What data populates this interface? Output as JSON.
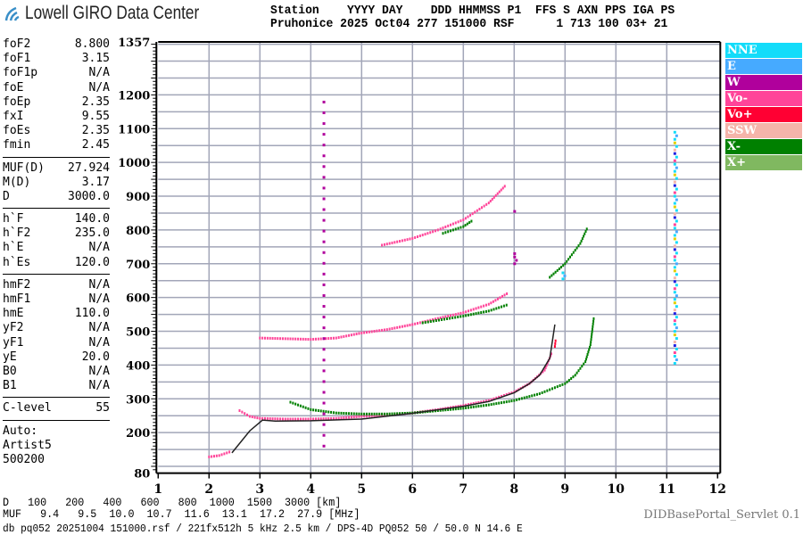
{
  "logo": {
    "text": "Lowell GIRO Data Center"
  },
  "header": {
    "line1": "Station    YYYY DAY    DDD HHMMSS P1  FFS S AXN PPS IGA PS",
    "line2": "Pruhonice 2025 Oct04 277 151000 RSF      1 713 100 03+ 21"
  },
  "params": {
    "group1": [
      {
        "label": "foF2",
        "value": "8.800"
      },
      {
        "label": "foF1",
        "value": "3.15"
      },
      {
        "label": "foF1p",
        "value": "N/A"
      },
      {
        "label": "foE",
        "value": "N/A"
      },
      {
        "label": "foEp",
        "value": "2.35"
      },
      {
        "label": "fxI",
        "value": "9.55"
      },
      {
        "label": "foEs",
        "value": "2.35"
      },
      {
        "label": "fmin",
        "value": "2.45"
      }
    ],
    "group2": [
      {
        "label": "MUF(D)",
        "value": "27.924"
      },
      {
        "label": "M(D)",
        "value": "3.17"
      },
      {
        "label": "D",
        "value": "3000.0"
      }
    ],
    "group3": [
      {
        "label": "h`F",
        "value": "140.0"
      },
      {
        "label": "h`F2",
        "value": "235.0"
      },
      {
        "label": "h`E",
        "value": "N/A"
      },
      {
        "label": "h`Es",
        "value": "120.0"
      }
    ],
    "group4": [
      {
        "label": "hmF2",
        "value": "N/A"
      },
      {
        "label": "hmF1",
        "value": "N/A"
      },
      {
        "label": "hmE",
        "value": "110.0"
      },
      {
        "label": "yF2",
        "value": "N/A"
      },
      {
        "label": "yF1",
        "value": "N/A"
      },
      {
        "label": "yE",
        "value": "20.0"
      },
      {
        "label": "B0",
        "value": "N/A"
      },
      {
        "label": "B1",
        "value": "N/A"
      }
    ],
    "group5": [
      {
        "label": "C-level",
        "value": "55"
      }
    ],
    "auto": [
      "Auto:",
      "Artist5",
      "500200"
    ]
  },
  "legend": [
    {
      "name": "NNE",
      "color": "#13dcfa"
    },
    {
      "name": "E",
      "color": "#46aaff"
    },
    {
      "name": "W",
      "color": "#b0009c"
    },
    {
      "name": "Vo-",
      "color": "#ff4499"
    },
    {
      "name": "Vo+",
      "color": "#ff0033"
    },
    {
      "name": "SSW",
      "color": "#f5b4aa"
    },
    {
      "name": "X-",
      "color": "#008000"
    },
    {
      "name": "X+",
      "color": "#80b860"
    }
  ],
  "chart_data": {
    "type": "scatter",
    "xlim": [
      1,
      12
    ],
    "ylim": [
      80,
      1357
    ],
    "x_ticks": [
      "1",
      "2",
      "3",
      "4",
      "5",
      "6",
      "7",
      "8",
      "9",
      "10",
      "11",
      "12"
    ],
    "y_ticks": [
      "1357",
      "1200",
      "1100",
      "1000",
      "900",
      "800",
      "700",
      "600",
      "500",
      "400",
      "300",
      "200",
      "80"
    ],
    "y_tick_values": [
      1357,
      1200,
      1100,
      1000,
      900,
      800,
      700,
      600,
      500,
      400,
      300,
      200,
      80
    ],
    "grid": true,
    "legend_position": "right",
    "series": [
      {
        "name": "Vo-",
        "color": "#ff4499",
        "x": [
          2.0,
          2.2,
          2.45
        ],
        "y": [
          128,
          132,
          145
        ]
      },
      {
        "name": "Vo-",
        "color": "#ff4499",
        "x": [
          2.6,
          2.8,
          3.0,
          3.5,
          4.0,
          4.5,
          5.0,
          5.5,
          6.0,
          6.5,
          7.0,
          7.5,
          8.0,
          8.3,
          8.6,
          8.75
        ],
        "y": [
          265,
          248,
          242,
          240,
          240,
          242,
          248,
          252,
          258,
          268,
          280,
          295,
          320,
          345,
          385,
          440
        ]
      },
      {
        "name": "Vo+",
        "color": "#ff0033",
        "x": [
          8.8,
          8.82
        ],
        "y": [
          455,
          480
        ]
      },
      {
        "name": "X-",
        "color": "#008000",
        "x": [
          3.6,
          4.0,
          4.5,
          5.0,
          5.5,
          6.0,
          6.5,
          7.0,
          7.5,
          8.0,
          8.5,
          9.0,
          9.2,
          9.4,
          9.5,
          9.57
        ],
        "y": [
          290,
          268,
          258,
          255,
          255,
          258,
          265,
          272,
          282,
          295,
          315,
          345,
          370,
          410,
          460,
          545
        ]
      },
      {
        "name": "Vo-",
        "color": "#ff4499",
        "x": [
          3.0,
          3.5,
          4.0,
          4.5,
          5.0,
          5.5,
          6.0,
          6.5,
          7.0,
          7.5,
          7.9
        ],
        "y": [
          480,
          478,
          476,
          480,
          495,
          505,
          520,
          538,
          555,
          580,
          615
        ]
      },
      {
        "name": "X-",
        "color": "#008000",
        "x": [
          6.2,
          7.0,
          7.5,
          7.9
        ],
        "y": [
          525,
          545,
          560,
          580
        ]
      },
      {
        "name": "Vo-",
        "color": "#ff4499",
        "x": [
          5.4,
          6.0,
          6.5,
          7.0,
          7.5,
          7.85
        ],
        "y": [
          755,
          775,
          800,
          830,
          880,
          935
        ]
      },
      {
        "name": "X-",
        "color": "#008000",
        "x": [
          6.6,
          7.0,
          7.2
        ],
        "y": [
          790,
          810,
          830
        ]
      },
      {
        "name": "X-",
        "color": "#008000",
        "x": [
          8.7,
          9.0,
          9.3,
          9.45
        ],
        "y": [
          660,
          700,
          760,
          810
        ]
      },
      {
        "name": "NNE",
        "color": "#13dcfa",
        "x": [
          11.15,
          11.15
        ],
        "y": [
          405,
          1100
        ]
      },
      {
        "name": "W",
        "color": "#b0009c",
        "x": [
          4.25,
          4.25
        ],
        "y": [
          160,
          1200
        ]
      },
      {
        "name": "W",
        "color": "#b0009c",
        "x": [
          8.0,
          8.0
        ],
        "y": [
          700,
          740
        ]
      },
      {
        "name": "W",
        "color": "#b0009c",
        "x": [
          8.0,
          8.0
        ],
        "y": [
          855,
          868
        ]
      },
      {
        "name": "NNE",
        "color": "#13dcfa",
        "x": [
          8.95,
          8.95
        ],
        "y": [
          655,
          682
        ]
      }
    ],
    "trace": {
      "x": [
        2.45,
        2.8,
        3.05,
        3.3,
        4.0,
        5.0,
        6.0,
        7.0,
        7.5,
        8.0,
        8.3,
        8.5,
        8.7,
        8.8
      ],
      "y": [
        140,
        205,
        237,
        234,
        235,
        240,
        257,
        278,
        292,
        318,
        345,
        370,
        420,
        520
      ]
    }
  },
  "distance_table": {
    "d_label": "D",
    "d_values": [
      "100",
      "200",
      "400",
      "600",
      "800",
      "1000",
      "1500",
      "3000"
    ],
    "d_unit": "[km]",
    "muf_label": "MUF",
    "muf_values": [
      "9.4",
      "9.5",
      "10.0",
      "10.7",
      "11.6",
      "13.1",
      "17.2",
      "27.9"
    ],
    "muf_unit": "[MHz]"
  },
  "footer": "db pq052 20251004 151000.rsf / 221fx512h 5 kHz 2.5 km / DPS-4D PQ052 50 / 50.0 N 14.6 E",
  "servlet": "DIDBasePortal_Servlet 0.1"
}
